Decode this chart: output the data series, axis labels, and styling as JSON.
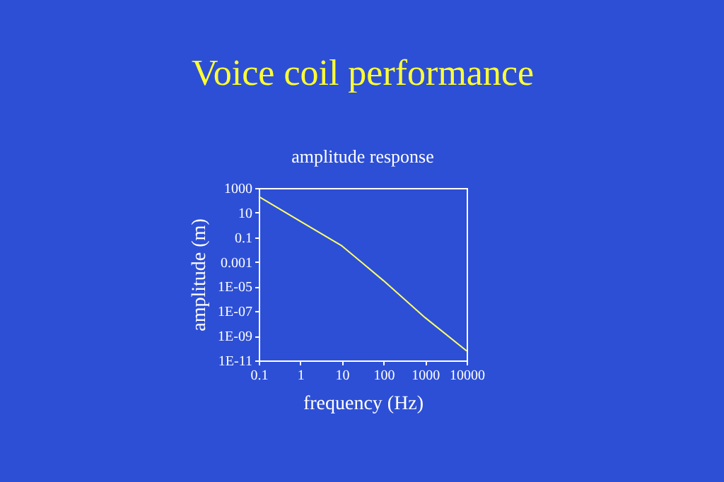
{
  "chart_data": {
    "type": "line",
    "title": "Voice coil performance",
    "subtitle": "amplitude response",
    "xlabel": "frequency (Hz)",
    "ylabel": "amplitude (m)",
    "x": [
      0.1,
      1,
      10,
      100,
      1000,
      10000
    ],
    "series": [
      {
        "color": "#ffff66",
        "values": [
          200,
          2,
          0.02,
          3e-05,
          3e-08,
          6e-11
        ]
      }
    ],
    "log": "xy",
    "grid": false,
    "marker": "none",
    "line_style": "solid",
    "xlim": [
      0.1,
      10000
    ],
    "xticks": [
      0.1,
      1,
      10,
      100,
      1000,
      10000
    ],
    "ylim": [
      1e-11,
      1000
    ],
    "yticks": [
      1000,
      10,
      0.1,
      0.001,
      {
        "value": 1e-05,
        "label": "1E-05"
      },
      {
        "value": 1e-07,
        "label": "1E-07"
      },
      {
        "value": 1e-09,
        "label": "1E-09"
      },
      {
        "value": 1e-11,
        "label": "1E-11"
      }
    ]
  }
}
